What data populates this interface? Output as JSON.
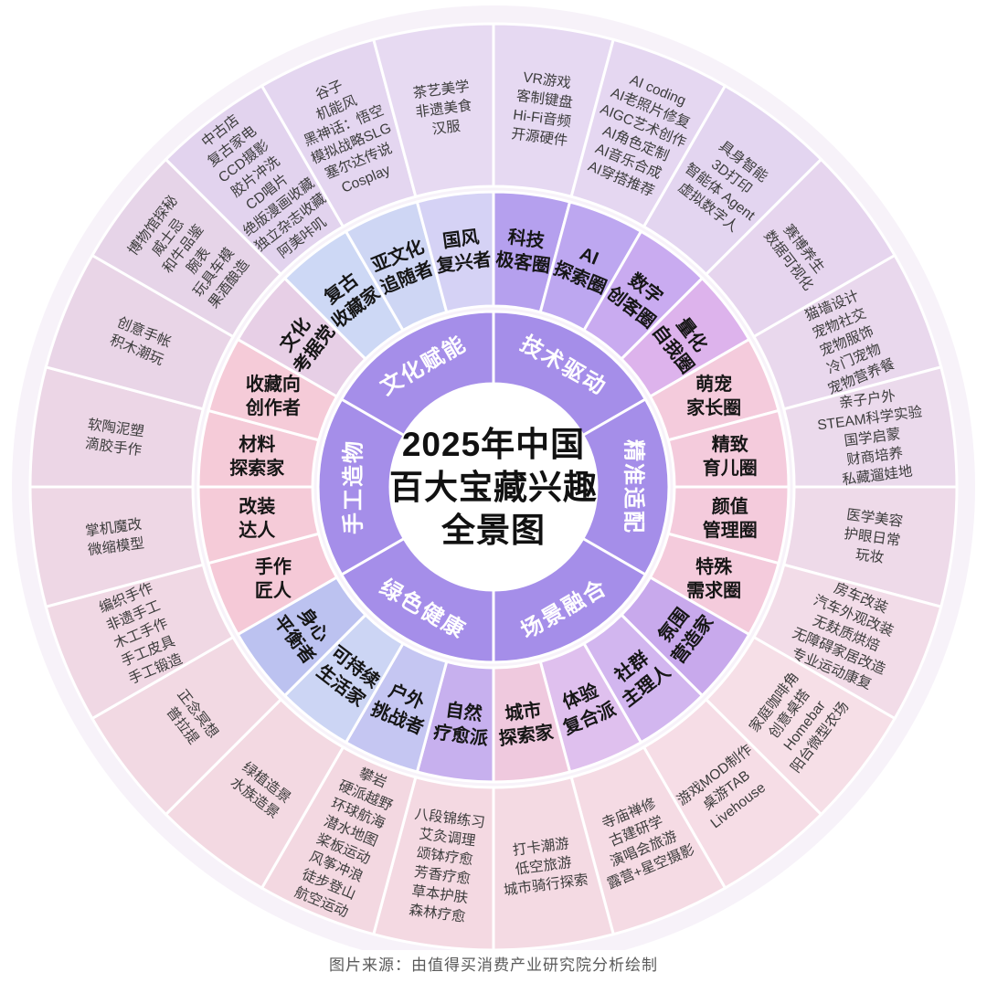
{
  "title": {
    "lines": [
      "2025年中国",
      "百大宝藏兴趣",
      "全景图"
    ]
  },
  "footer": {
    "source_note": "图片来源：由值得买消费产业研究院分析绘制"
  },
  "wheel": {
    "inner_ring_color": "#a58ee9",
    "category_label_color": "#ffffff",
    "sub_label_color": "#161616",
    "item_text_color": "#3c3c3c",
    "halo_color": "#f7f2f9",
    "categories": [
      {
        "name": "技术驱动",
        "subs": [
          {
            "name": "科技极客圈",
            "name_lines": [
              "科技",
              "极客圈"
            ],
            "mid_color": "#b5a0ee",
            "outer_color": "#e6d9f2",
            "items": [
              "VR游戏",
              "客制键盘",
              "Hi-Fi音频",
              "开源硬件"
            ]
          },
          {
            "name": "AI探索圈",
            "name_lines": [
              "AI",
              "探索圈"
            ],
            "mid_color": "#bda7f0",
            "outer_color": "#e5d7f1",
            "items": [
              "AI coding",
              "AI老照片修复",
              "AIGC艺术创作",
              "AI角色定制",
              "AI音乐合成",
              "AI穿搭推荐"
            ]
          },
          {
            "name": "数字创客圈",
            "name_lines": [
              "数字",
              "创客圈"
            ],
            "mid_color": "#c9abf0",
            "outer_color": "#e3d5f0",
            "items": [
              "具身智能",
              "3D打印",
              "智能体 Agent",
              "虚拟数字人"
            ]
          },
          {
            "name": "量化自我圈",
            "name_lines": [
              "量化",
              "自我圈"
            ],
            "mid_color": "#ddb3ec",
            "outer_color": "#e6d5ee",
            "items": [
              "赛博养生",
              "数据可视化"
            ]
          }
        ]
      },
      {
        "name": "精准适配",
        "subs": [
          {
            "name": "萌宠家长圈",
            "name_lines": [
              "萌宠",
              "家长圈"
            ],
            "mid_color": "#f4cbdc",
            "outer_color": "#e9d8ed",
            "items": [
              "猫墙设计",
              "宠物社交",
              "宠物服饰",
              "冷门宠物",
              "宠物营养餐"
            ]
          },
          {
            "name": "精致育儿圈",
            "name_lines": [
              "精致",
              "育儿圈"
            ],
            "mid_color": "#f4cbdc",
            "outer_color": "#ebdaec",
            "items": [
              "亲子户外",
              "STEAM科学实验",
              "国学启蒙",
              "财商培养",
              "私藏遛娃地"
            ]
          },
          {
            "name": "颜值管理圈",
            "name_lines": [
              "颜值",
              "管理圈"
            ],
            "mid_color": "#f4cbdc",
            "outer_color": "#eedae9",
            "items": [
              "医学美容",
              "护眼日常",
              "玩妆"
            ]
          },
          {
            "name": "特殊需求圈",
            "name_lines": [
              "特殊",
              "需求圈"
            ],
            "mid_color": "#f4cbdc",
            "outer_color": "#f2dce8",
            "items": [
              "房车改装",
              "汽车外观改装",
              "无麸质烘焙",
              "无障碍家居改造",
              "专业运动康复"
            ]
          }
        ]
      },
      {
        "name": "场景融合",
        "subs": [
          {
            "name": "氛围营造家",
            "name_lines": [
              "氛围",
              "营造家"
            ],
            "mid_color": "#c8a9ec",
            "outer_color": "#f6dfe7",
            "items": [
              "家庭咖啡角",
              "创意桌搭",
              "Homebar",
              "阳台微型农场"
            ]
          },
          {
            "name": "社群主理人",
            "name_lines": [
              "社群",
              "主理人"
            ],
            "mid_color": "#d2b6ef",
            "outer_color": "#f6dde6",
            "items": [
              "游戏MOD制作",
              "桌游TAB",
              "Livehouse"
            ]
          },
          {
            "name": "体验复合派",
            "name_lines": [
              "体验",
              "复合派"
            ],
            "mid_color": "#dfc0ee",
            "outer_color": "#f5dbe4",
            "items": [
              "寺庙禅修",
              "古建研学",
              "演唱会旅游",
              "露营+星空摄影"
            ]
          },
          {
            "name": "城市探索家",
            "name_lines": [
              "城市",
              "探索家"
            ],
            "mid_color": "#efc9de",
            "outer_color": "#f4dae3",
            "items": [
              "打卡潮游",
              "低空旅游",
              "城市骑行探索"
            ]
          }
        ]
      },
      {
        "name": "绿色健康",
        "subs": [
          {
            "name": "自然疗愈派",
            "name_lines": [
              "自然",
              "疗愈派"
            ],
            "mid_color": "#c7b0ee",
            "outer_color": "#f4d9e2",
            "items": [
              "八段锦练习",
              "艾灸调理",
              "颂钵疗愈",
              "芳香疗愈",
              "草本护肤",
              "森林疗愈"
            ]
          },
          {
            "name": "户外挑战者",
            "name_lines": [
              "户外",
              "挑战者"
            ],
            "mid_color": "#c5c6f2",
            "outer_color": "#f3d8e1",
            "items": [
              "攀岩",
              "硬派越野",
              "环球航海",
              "潜水地图",
              "桨板运动",
              "风筝冲浪",
              "徒步登山",
              "航空运动"
            ]
          },
          {
            "name": "可持续生活家",
            "name_lines": [
              "可持续",
              "生活家"
            ],
            "mid_color": "#ccd5f4",
            "outer_color": "#f3d9e2",
            "items": [
              "绿植造景",
              "水族造景"
            ]
          },
          {
            "name": "身心平衡者",
            "name_lines": [
              "身心",
              "平衡者"
            ],
            "mid_color": "#bcc2f0",
            "outer_color": "#f2d9e3",
            "items": [
              "正念冥想",
              "普拉提"
            ]
          }
        ]
      },
      {
        "name": "手工造物",
        "subs": [
          {
            "name": "手作匠人",
            "name_lines": [
              "手作",
              "匠人"
            ],
            "mid_color": "#f5c9d7",
            "outer_color": "#f0d8e4",
            "items": [
              "编织手作",
              "非遗手工",
              "木工手作",
              "手工皮具",
              "手工锻造"
            ]
          },
          {
            "name": "改装达人",
            "name_lines": [
              "改装",
              "达人"
            ],
            "mid_color": "#f5cbd8",
            "outer_color": "#eed7e5",
            "items": [
              "掌机魔改",
              "微缩模型"
            ]
          },
          {
            "name": "材料探索家",
            "name_lines": [
              "材料",
              "探索家"
            ],
            "mid_color": "#f5cbd8",
            "outer_color": "#ecd6e6",
            "items": [
              "软陶泥塑",
              "滴胶手作"
            ]
          },
          {
            "name": "收藏向创作者",
            "name_lines": [
              "收藏向",
              "创作者"
            ],
            "mid_color": "#f5cbd8",
            "outer_color": "#e9d5e7",
            "items": [
              "创意手帐",
              "积木潮玩"
            ]
          }
        ]
      },
      {
        "name": "文化赋能",
        "subs": [
          {
            "name": "文化考据党",
            "name_lines": [
              "文化",
              "考据党"
            ],
            "mid_color": "#e7cfe6",
            "outer_color": "#e6d4e8",
            "items": [
              "博物馆探秘",
              "威士忌",
              "和牛品鉴",
              "腕表",
              "玩具车模",
              "果酒酿造"
            ]
          },
          {
            "name": "复古收藏家",
            "name_lines": [
              "复古",
              "收藏家"
            ],
            "mid_color": "#cdd8f5",
            "outer_color": "#e2d3ee",
            "items": [
              "中古店",
              "复古家电",
              "CCD摄影",
              "胶片冲洗",
              "CD唱片",
              "绝版漫画收藏",
              "独立杂志收藏",
              "阿美咔叽"
            ]
          },
          {
            "name": "亚文化追随者",
            "name_lines": [
              "亚文化",
              "追随者"
            ],
            "mid_color": "#ced6f4",
            "outer_color": "#e4d6f0",
            "items": [
              "谷子",
              "机能风",
              "黑神话：悟空",
              "模拟战略SLG",
              "塞尔达传说",
              "Cosplay"
            ]
          },
          {
            "name": "国风复兴者",
            "name_lines": [
              "国风",
              "复兴者"
            ],
            "mid_color": "#d5d2f5",
            "outer_color": "#e7daf2",
            "items": [
              "茶艺美学",
              "非遗美食",
              "汉服"
            ]
          }
        ]
      }
    ]
  }
}
